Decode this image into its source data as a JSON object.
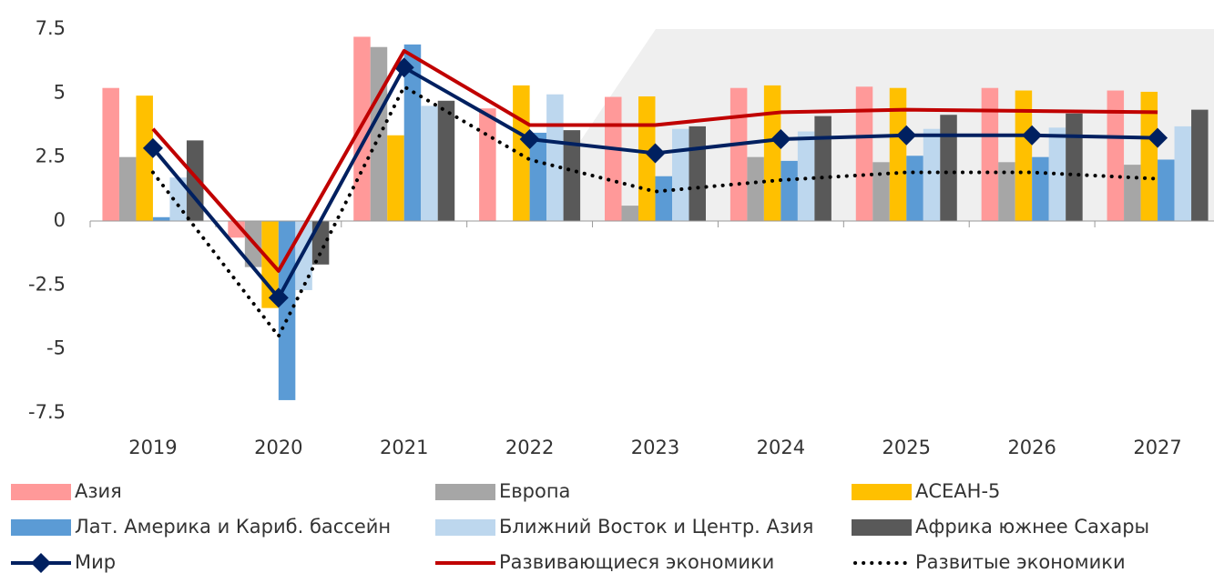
{
  "chart_data": {
    "type": "bar",
    "categories": [
      "2019",
      "2020",
      "2021",
      "2022",
      "2023",
      "2024",
      "2025",
      "2026",
      "2027"
    ],
    "ylim": [
      -7.5,
      7.5
    ],
    "yticks": [
      7.5,
      5,
      2.5,
      0,
      -2.5,
      -5,
      -7.5
    ],
    "series": [
      {
        "name": "Азия",
        "type": "bar",
        "color": "#ff9999",
        "values": [
          5.2,
          -0.65,
          7.2,
          4.4,
          4.85,
          5.2,
          5.25,
          5.2,
          5.1
        ]
      },
      {
        "name": "Европа",
        "type": "bar",
        "color": "#a6a6a6",
        "values": [
          2.5,
          -1.8,
          6.8,
          null,
          0.6,
          2.5,
          2.3,
          2.3,
          2.2
        ]
      },
      {
        "name": "АСЕАН-5",
        "type": "bar",
        "color": "#ffc000",
        "values": [
          4.9,
          -3.4,
          3.35,
          5.3,
          4.87,
          5.3,
          5.2,
          5.1,
          5.05
        ]
      },
      {
        "name": "Лат. Америка и Кариб. бассейн",
        "type": "bar",
        "color": "#5b9bd5",
        "values": [
          0.15,
          -7.0,
          6.9,
          3.45,
          1.75,
          2.35,
          2.55,
          2.5,
          2.4
        ]
      },
      {
        "name": "Ближний Восток и Центр. Азия",
        "type": "bar",
        "color": "#bdd7ee",
        "values": [
          1.7,
          -2.7,
          4.5,
          4.95,
          3.6,
          3.5,
          3.6,
          3.65,
          3.7
        ]
      },
      {
        "name": "Африка южнее Сахары",
        "type": "bar",
        "color": "#595959",
        "values": [
          3.15,
          -1.7,
          4.7,
          3.55,
          3.7,
          4.1,
          4.15,
          4.2,
          4.35
        ]
      },
      {
        "name": "Мир",
        "type": "line",
        "marker": "diamond",
        "color": "#002060",
        "values": [
          2.85,
          -3.0,
          6.0,
          3.2,
          2.65,
          3.2,
          3.35,
          3.35,
          3.25
        ]
      },
      {
        "name": "Развивающиеся экономики",
        "type": "line",
        "color": "#c00000",
        "values": [
          3.6,
          -1.95,
          6.65,
          3.75,
          3.75,
          4.25,
          4.35,
          4.3,
          4.25
        ]
      },
      {
        "name": "Развитые экономики",
        "type": "line",
        "dash": "dotted",
        "color": "#000000",
        "values": [
          1.9,
          -4.5,
          5.25,
          2.4,
          1.15,
          1.6,
          1.9,
          1.9,
          1.65
        ]
      }
    ]
  }
}
